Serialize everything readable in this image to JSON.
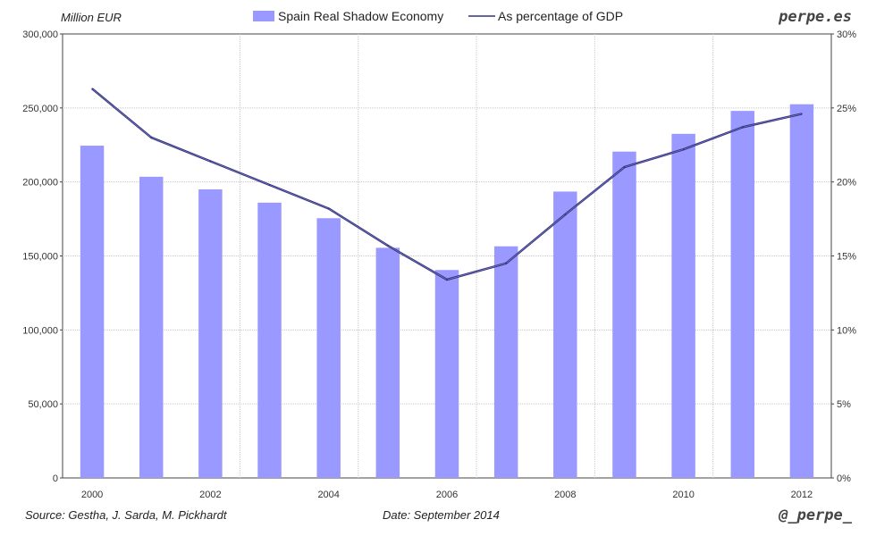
{
  "header": {
    "left_axis_unit": "Million EUR",
    "brand": "perpe.es"
  },
  "footer": {
    "source": "Source: Gestha, J. Sarda, M. Pickhardt",
    "date": "Date: September 2014",
    "handle": "@_perpe_"
  },
  "chart_data": {
    "type": "bar",
    "categories": [
      2000,
      2001,
      2002,
      2003,
      2004,
      2005,
      2006,
      2007,
      2008,
      2009,
      2010,
      2011,
      2012
    ],
    "x_tick_labels": [
      "2000",
      "2002",
      "2004",
      "2006",
      "2008",
      "2010",
      "2012"
    ],
    "series": [
      {
        "name": "Spain Real Shadow Economy",
        "type": "bar",
        "axis": "left",
        "color": "#9999ff",
        "values": [
          224500,
          203500,
          195000,
          186000,
          175500,
          155500,
          140500,
          156500,
          193500,
          220500,
          232500,
          248000,
          252500
        ]
      },
      {
        "name": "As percentage of GDP",
        "type": "line",
        "axis": "right",
        "color": "#33337a",
        "values": [
          26.3,
          23.0,
          21.4,
          19.8,
          18.2,
          15.7,
          13.4,
          14.5,
          17.8,
          21.0,
          22.2,
          23.7,
          24.6
        ]
      }
    ],
    "y_left": {
      "min": 0,
      "max": 300000,
      "step": 50000,
      "tick_labels": [
        "0",
        "50,000",
        "100,000",
        "150,000",
        "200,000",
        "250,000",
        "300,000"
      ]
    },
    "y_right": {
      "min": 0,
      "max": 30,
      "step": 5,
      "tick_labels": [
        "0%",
        "5%",
        "10%",
        "15%",
        "20%",
        "25%",
        "30%"
      ]
    },
    "grid": true,
    "legend": "top-center"
  }
}
